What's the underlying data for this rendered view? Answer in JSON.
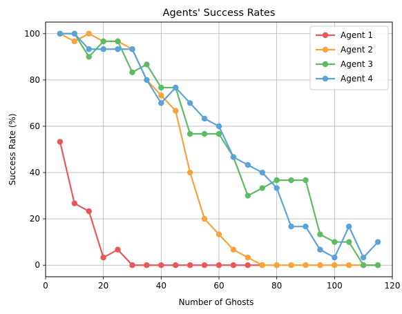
{
  "chart_data": {
    "type": "line",
    "title": "Agents' Success Rates",
    "xlabel": "Number of Ghosts",
    "ylabel": "Success Rate (%)",
    "xlim": [
      0,
      120
    ],
    "ylim": [
      -5,
      105
    ],
    "xticks": [
      0,
      20,
      40,
      60,
      80,
      100,
      120
    ],
    "yticks": [
      0,
      20,
      40,
      60,
      80,
      100
    ],
    "grid": true,
    "legend_position": "top-right",
    "x": [
      5,
      10,
      15,
      20,
      25,
      30,
      35,
      40,
      45,
      50,
      55,
      60,
      65,
      70,
      75,
      80,
      85,
      90,
      95,
      100,
      105,
      110,
      115
    ],
    "series": [
      {
        "name": "Agent 1",
        "color": "#e8585a",
        "values": [
          53.3,
          26.7,
          23.3,
          3.3,
          6.7,
          0,
          0,
          0,
          0,
          0,
          0,
          0,
          0,
          0,
          0,
          null,
          null,
          null,
          null,
          null,
          null,
          null,
          null
        ]
      },
      {
        "name": "Agent 2",
        "color": "#f7a23b",
        "values": [
          100,
          96.7,
          100,
          96.7,
          96.7,
          93.3,
          80,
          73.3,
          66.7,
          40,
          20,
          13.3,
          6.7,
          3.3,
          0,
          0,
          0,
          0,
          0,
          0,
          0,
          0,
          0
        ]
      },
      {
        "name": "Agent 3",
        "color": "#5dbb63",
        "values": [
          100,
          100,
          90,
          96.7,
          96.7,
          83.3,
          86.7,
          76.7,
          76.7,
          56.7,
          56.7,
          56.7,
          46.7,
          30,
          33.3,
          36.7,
          36.7,
          36.7,
          13.3,
          10,
          10,
          0,
          0
        ]
      },
      {
        "name": "Agent 4",
        "color": "#5aa3d8",
        "values": [
          100,
          100,
          93.3,
          93.3,
          93.3,
          93.3,
          80,
          70,
          76.7,
          70,
          63.3,
          60,
          46.7,
          43.3,
          40,
          33.3,
          16.7,
          16.7,
          6.7,
          3.3,
          16.7,
          3.3,
          10
        ]
      }
    ]
  }
}
